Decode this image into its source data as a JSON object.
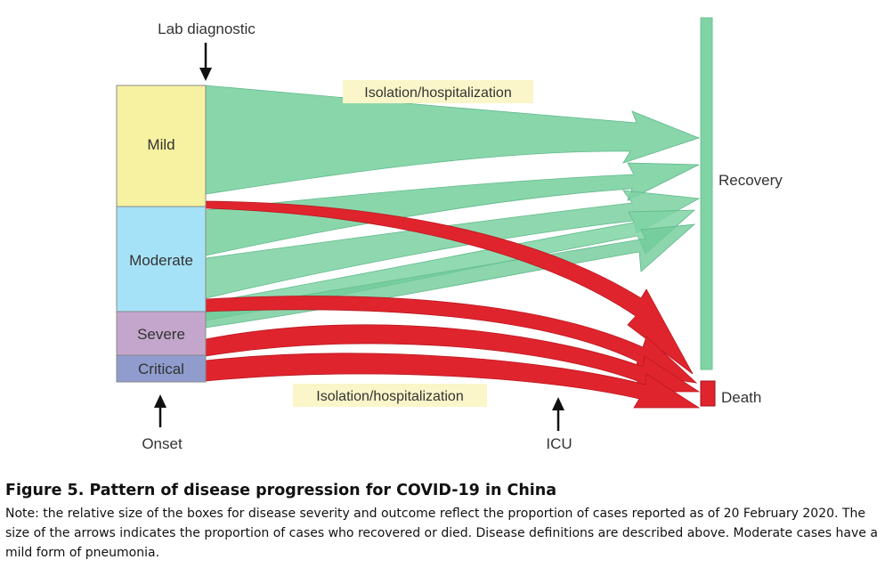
{
  "diagram": {
    "top_marker_label": "Lab diagnostic",
    "bottom_left_marker_label": "Onset",
    "bottom_mid_marker_label": "ICU",
    "stage_mild": "Mild",
    "stage_moderate": "Moderate",
    "stage_severe": "Severe",
    "stage_critical": "Critical",
    "outcome_recovery": "Recovery",
    "outcome_death": "Death",
    "isolation_top": "Isolation/hospitalization",
    "isolation_bottom": "Isolation/hospitalization",
    "colors": {
      "mild": "#f7f2a1",
      "moderate": "#a6e2f7",
      "severe": "#c4a6cc",
      "critical": "#8f9ccd",
      "recover_flow": "#7fd3a4",
      "death_flow": "#e0242d",
      "recovery_bar": "#7fd3a4",
      "death_box": "#e0242d",
      "label_bg": "#fbf6c9"
    }
  },
  "caption": {
    "title": "Figure 5. Pattern of disease progression for COVID-19 in China",
    "note": "Note: the relative size of the boxes for disease severity and outcome reflect the proportion of cases reported as of 20 February 2020.  The size of the arrows indicates the proportion of cases who recovered or died.  Disease definitions are described above.  Moderate cases have a mild form of pneumonia."
  }
}
